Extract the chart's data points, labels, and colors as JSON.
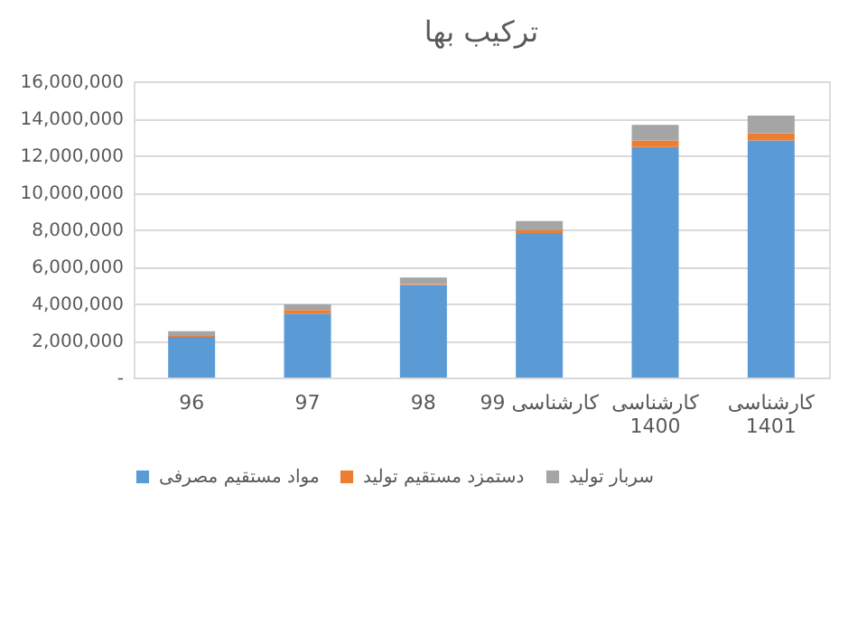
{
  "chart_data": {
    "type": "bar",
    "title": "ترکیب بها",
    "stacked": true,
    "categories": [
      "96",
      "97",
      "98",
      "کارشناسی 99",
      "کارشناسی 1400",
      "کارشناسی 1401"
    ],
    "series": [
      {
        "name": "مواد مستقیم مصرفی",
        "color": "#5b9bd5",
        "values": [
          2200000,
          3450000,
          5000000,
          7800000,
          12450000,
          12800000
        ]
      },
      {
        "name": "دستمزد مستقیم تولید",
        "color": "#ed7d31",
        "values": [
          50000,
          200000,
          50000,
          150000,
          350000,
          400000
        ]
      },
      {
        "name": "سربار تولید",
        "color": "#a5a5a5",
        "values": [
          250000,
          300000,
          350000,
          500000,
          850000,
          950000
        ]
      }
    ],
    "ylim": [
      0,
      16000000
    ],
    "yticks": [
      {
        "value": 0,
        "label": "-"
      },
      {
        "value": 2000000,
        "label": "2,000,000"
      },
      {
        "value": 4000000,
        "label": "4,000,000"
      },
      {
        "value": 6000000,
        "label": "6,000,000"
      },
      {
        "value": 8000000,
        "label": "8,000,000"
      },
      {
        "value": 10000000,
        "label": "10,000,000"
      },
      {
        "value": 12000000,
        "label": "12,000,000"
      },
      {
        "value": 14000000,
        "label": "14,000,000"
      },
      {
        "value": 16000000,
        "label": "16,000,000"
      }
    ],
    "grid": "y",
    "legend": "bottom"
  }
}
